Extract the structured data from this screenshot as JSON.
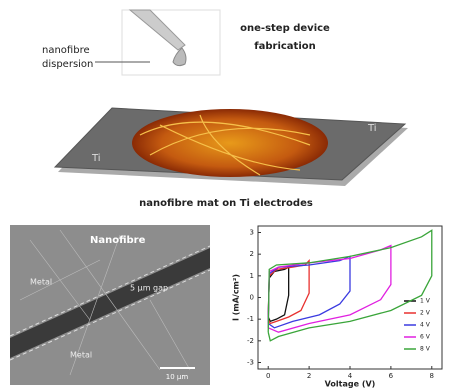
{
  "schematic": {
    "dispersion_line1": "nanofibre",
    "dispersion_line2": "dispersion",
    "step_line1": "one-step device",
    "step_line2": "fabrication",
    "ti_left": "Ti",
    "ti_right": "Ti",
    "caption": "nanofibre mat on Ti electrodes"
  },
  "sem": {
    "nanofibre": "Nanofibre",
    "metal_top": "Metal",
    "metal_bottom": "Metal",
    "gap": "5 µm gap",
    "scale": "10 µm"
  },
  "chart_data": {
    "type": "line",
    "x_label": "Voltage (V)",
    "y_label": "I (mA/cm²)",
    "xlim": [
      -0.5,
      8.5
    ],
    "ylim": [
      -3.3,
      3.3
    ],
    "xticks": [
      0,
      2,
      4,
      6,
      8
    ],
    "yticks": [
      -3,
      -2,
      -1,
      0,
      1,
      2,
      3
    ],
    "legend": "lower right",
    "series": [
      {
        "name": "1 V",
        "color": "#111111",
        "x": [
          0,
          0.05,
          0.3,
          0.8,
          1,
          1,
          0.8,
          0.4,
          0.1,
          0
        ],
        "values": [
          -0.9,
          0.9,
          1.2,
          1.3,
          1.4,
          0.1,
          -0.8,
          -1,
          -1.1,
          -0.9
        ]
      },
      {
        "name": "2 V",
        "color": "#e8312f",
        "x": [
          0,
          0.05,
          0.4,
          1.2,
          1.8,
          2,
          2,
          1.6,
          1,
          0.4,
          0.1,
          0
        ],
        "values": [
          -1,
          1,
          1.3,
          1.4,
          1.5,
          1.7,
          0.2,
          -0.6,
          -0.9,
          -1.1,
          -1.2,
          -1
        ]
      },
      {
        "name": "4 V",
        "color": "#3a3ae0",
        "x": [
          0,
          0.05,
          0.5,
          2,
          3.5,
          4,
          4,
          3.5,
          2.5,
          1.2,
          0.3,
          0
        ],
        "values": [
          -1.2,
          1.1,
          1.4,
          1.5,
          1.7,
          1.9,
          0.3,
          -0.3,
          -0.8,
          -1.1,
          -1.4,
          -1.2
        ]
      },
      {
        "name": "6 V",
        "color": "#e020e0",
        "x": [
          0,
          0.05,
          0.5,
          2,
          4,
          5.5,
          6,
          6,
          5.5,
          4,
          2,
          0.5,
          0
        ],
        "values": [
          -1.4,
          1.2,
          1.4,
          1.6,
          1.8,
          2.2,
          2.4,
          0.6,
          -0.1,
          -0.8,
          -1.2,
          -1.6,
          -1.4
        ]
      },
      {
        "name": "8 V",
        "color": "#3aa53a",
        "x": [
          0,
          0.05,
          0.4,
          2,
          4,
          6,
          7.5,
          8,
          8,
          7.5,
          6,
          4,
          2,
          0.5,
          0.1,
          0
        ],
        "values": [
          -1.6,
          1.3,
          1.5,
          1.6,
          1.9,
          2.3,
          2.8,
          3.1,
          1,
          0.1,
          -0.6,
          -1.1,
          -1.4,
          -1.8,
          -2,
          -1.6
        ]
      }
    ]
  }
}
